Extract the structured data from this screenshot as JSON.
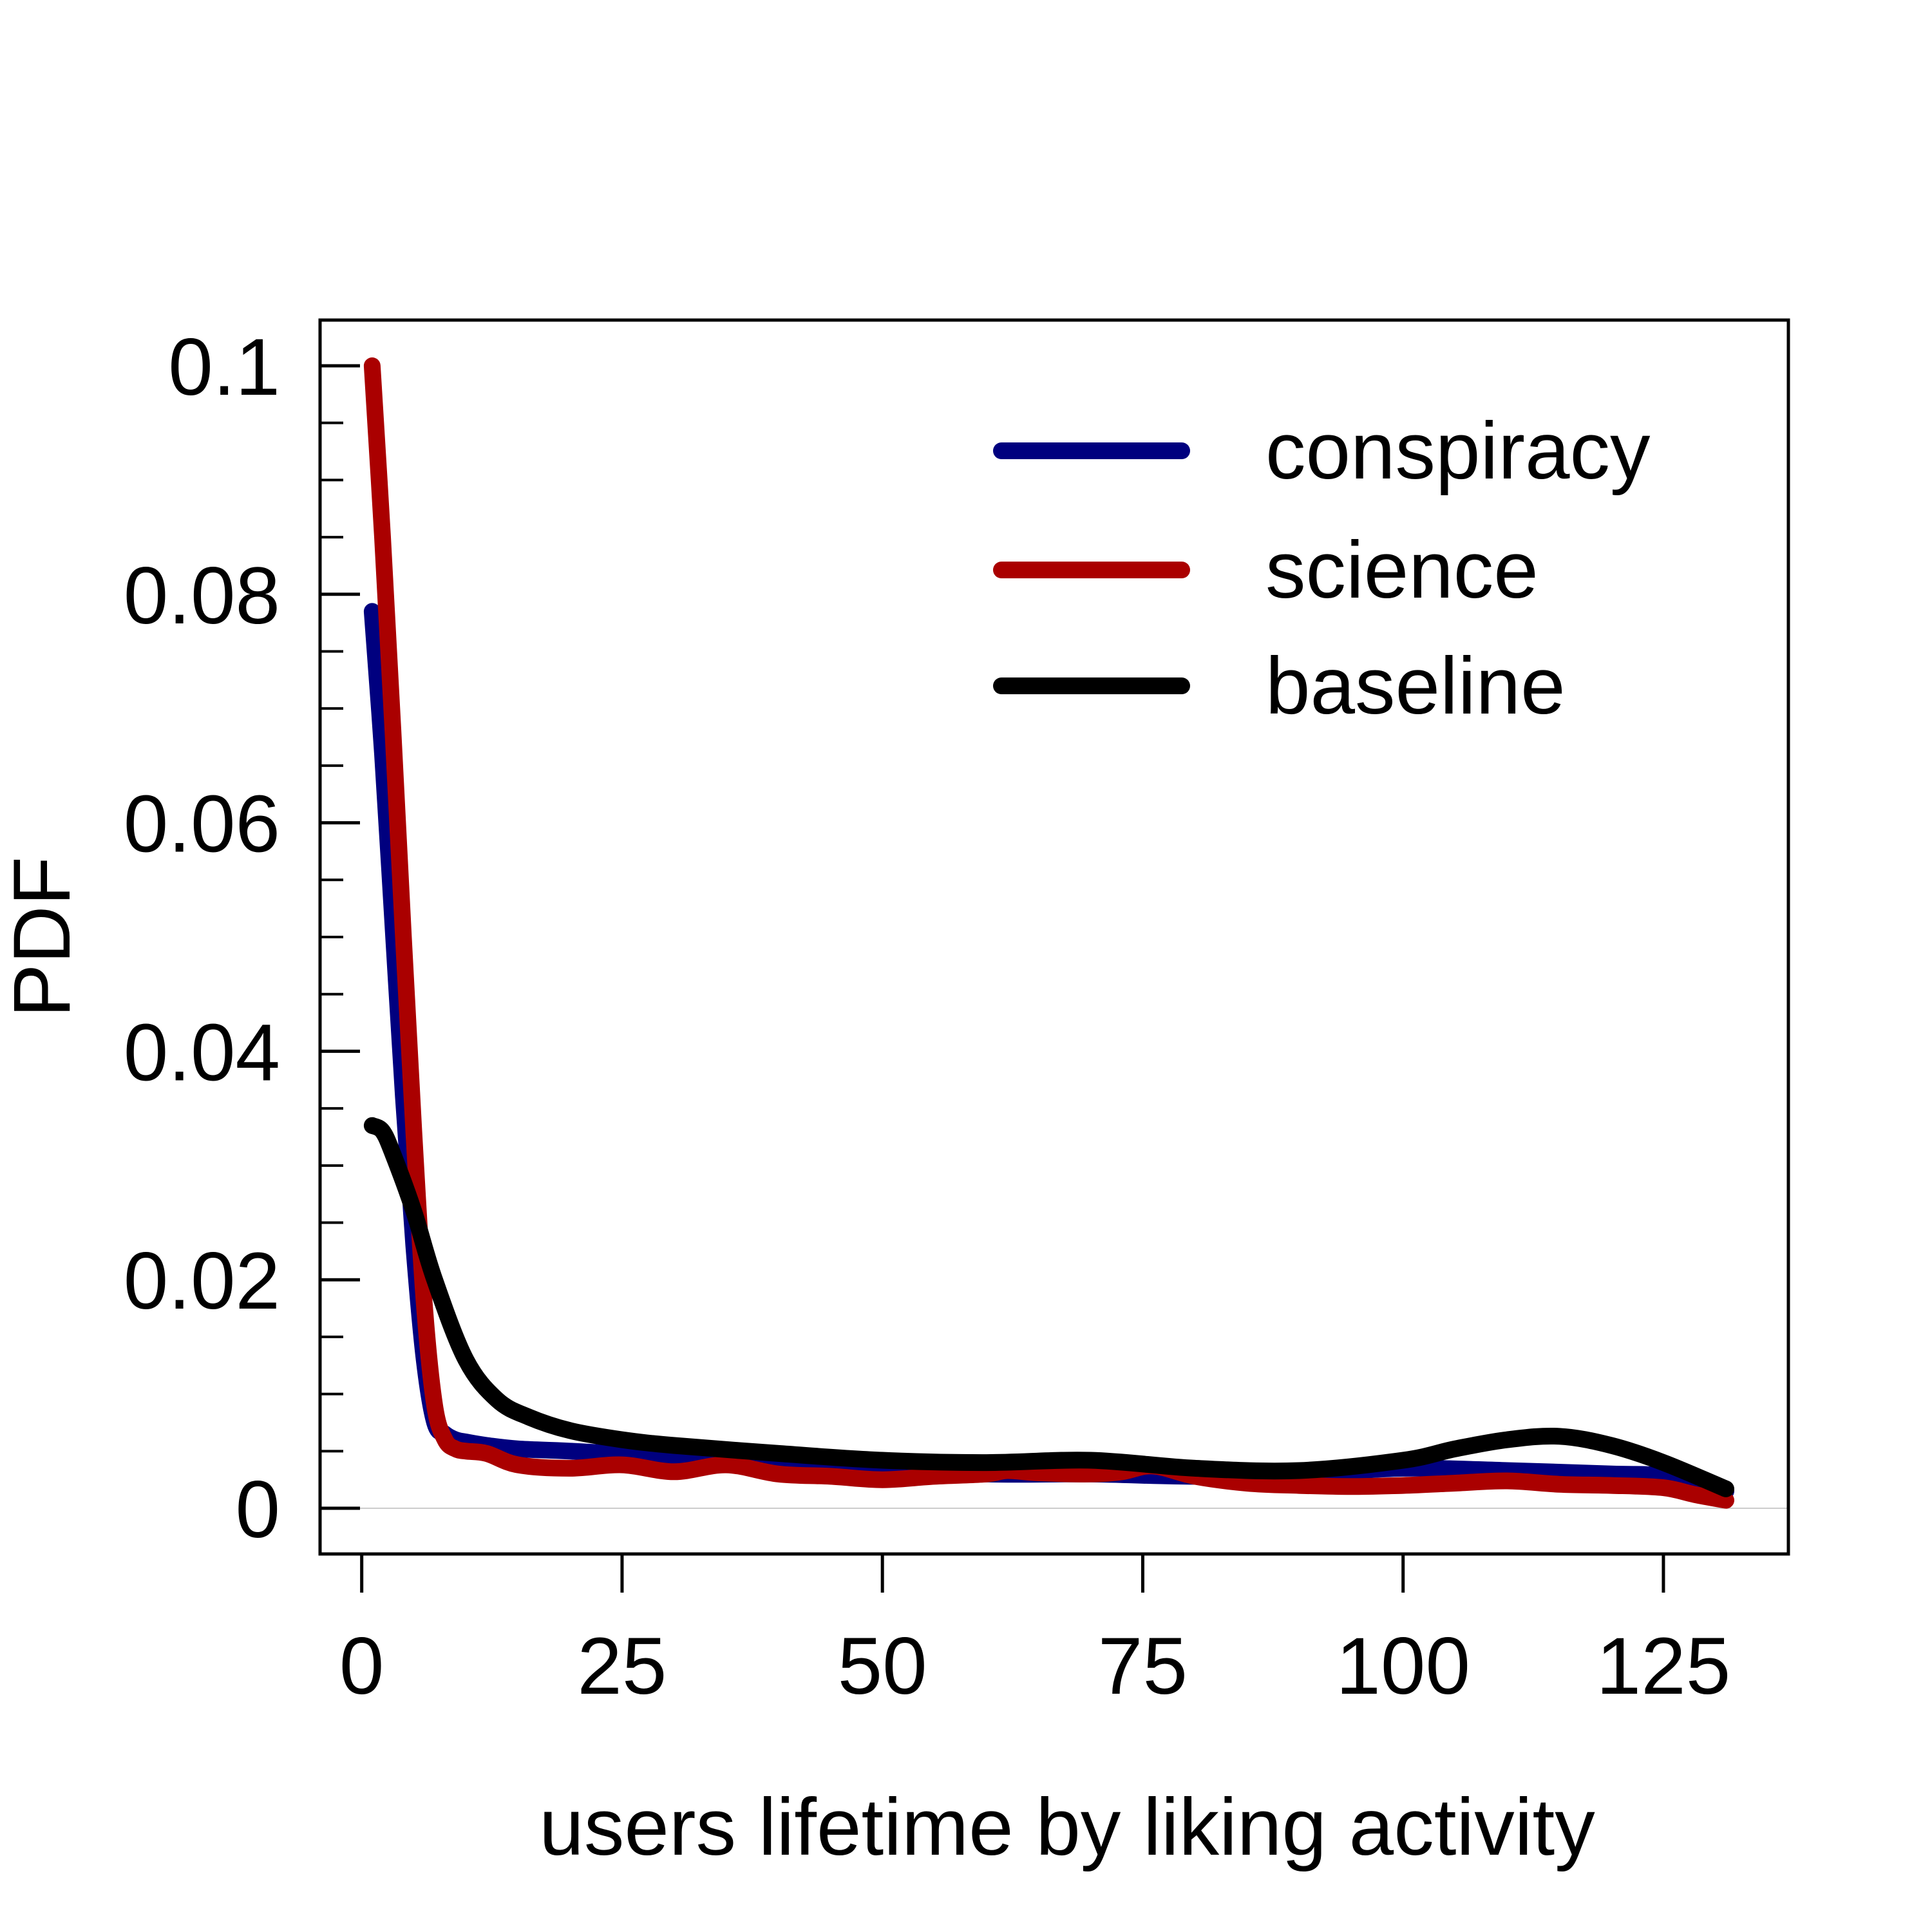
{
  "chart_data": {
    "type": "line",
    "title": "",
    "xlabel": "users lifetime by liking activity",
    "ylabel": "PDF",
    "xlim": [
      -4,
      137
    ],
    "ylim": [
      -0.004,
      0.104
    ],
    "x_ticks": [
      0,
      25,
      50,
      75,
      100,
      125
    ],
    "x_tick_labels": [
      "0",
      "25",
      "50",
      "75",
      "100",
      "125"
    ],
    "y_ticks": [
      0,
      0.02,
      0.04,
      0.06,
      0.08,
      0.1
    ],
    "y_tick_labels": [
      "0",
      "0.02",
      "0.04",
      "0.06",
      "0.08",
      "0.1"
    ],
    "y_minor_step": 0.005,
    "zero_line": true,
    "grid": false,
    "legend_position": "top-right",
    "series": [
      {
        "name": "conspiracy",
        "color": "#00007f",
        "x": [
          1,
          2,
          3,
          4,
          5,
          6,
          7,
          8,
          9,
          10,
          12,
          15,
          20,
          30,
          40,
          50,
          60,
          70,
          80,
          90,
          100,
          110,
          120,
          125,
          131
        ],
        "y": [
          0.0785,
          0.066,
          0.051,
          0.036,
          0.023,
          0.013,
          0.0075,
          0.0065,
          0.006,
          0.0058,
          0.0055,
          0.0052,
          0.005,
          0.0045,
          0.004,
          0.0035,
          0.003,
          0.003,
          0.0028,
          0.003,
          0.0035,
          0.0033,
          0.003,
          0.0028,
          0.0015
        ]
      },
      {
        "name": "science",
        "color": "#aa0000",
        "x": [
          1,
          2,
          3,
          4,
          5,
          6,
          7,
          8,
          9,
          10,
          12,
          15,
          20,
          25,
          30,
          35,
          40,
          45,
          50,
          55,
          60,
          62,
          65,
          70,
          73,
          76,
          80,
          85,
          90,
          95,
          100,
          105,
          110,
          115,
          120,
          125,
          128,
          131
        ],
        "y": [
          0.1,
          0.085,
          0.068,
          0.05,
          0.033,
          0.018,
          0.009,
          0.006,
          0.0052,
          0.005,
          0.0048,
          0.0038,
          0.0035,
          0.0038,
          0.0032,
          0.0038,
          0.003,
          0.0028,
          0.0025,
          0.0028,
          0.003,
          0.0033,
          0.0031,
          0.003,
          0.0032,
          0.0037,
          0.0028,
          0.0022,
          0.002,
          0.0019,
          0.002,
          0.0022,
          0.0024,
          0.0021,
          0.002,
          0.0018,
          0.0012,
          0.0007
        ]
      },
      {
        "name": "baseline",
        "color": "#000000",
        "x": [
          1,
          2,
          3,
          5,
          7,
          10,
          13,
          16,
          20,
          25,
          30,
          40,
          50,
          60,
          70,
          80,
          90,
          100,
          105,
          110,
          115,
          120,
          125,
          131
        ],
        "y": [
          0.0335,
          0.033,
          0.031,
          0.026,
          0.02,
          0.013,
          0.0095,
          0.008,
          0.0068,
          0.006,
          0.0055,
          0.0048,
          0.0042,
          0.004,
          0.0042,
          0.0035,
          0.0033,
          0.0042,
          0.0052,
          0.006,
          0.0063,
          0.0055,
          0.004,
          0.0017
        ]
      }
    ]
  }
}
